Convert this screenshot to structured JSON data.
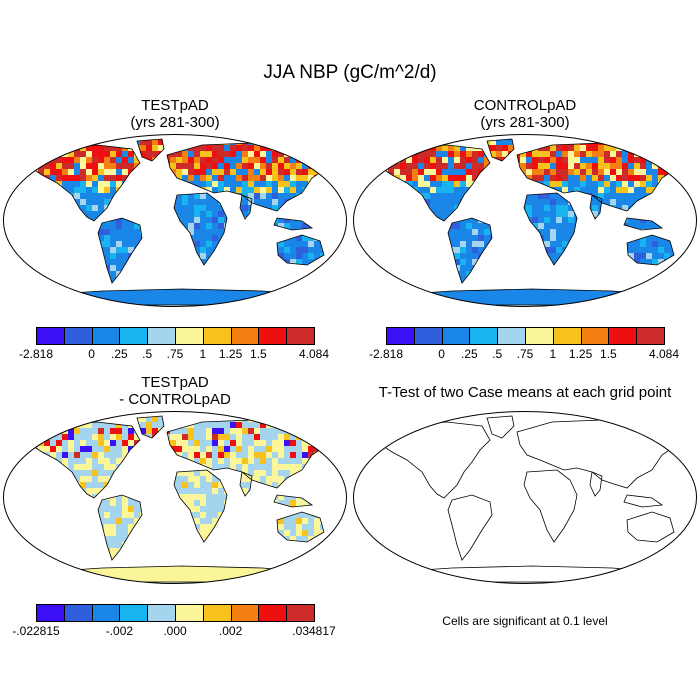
{
  "title": "JJA NBP (gC/m^2/d)",
  "panels": [
    {
      "id": "test",
      "title_line1": "TESTpAD",
      "title_line2": "(yrs 281-300)"
    },
    {
      "id": "control",
      "title_line1": "CONTROLpAD",
      "title_line2": "(yrs 281-300)"
    },
    {
      "id": "diff",
      "title_line1": "TESTpAD",
      "title_line2": "- CONTROLpAD"
    },
    {
      "id": "ttest",
      "title_line1": "T-Test of two Case means at each grid point",
      "title_line2": ""
    }
  ],
  "colorbars": {
    "main": {
      "colors": [
        "#3b10f5",
        "#2f5fdc",
        "#1a86e8",
        "#18b4ef",
        "#a5d4ee",
        "#fbf69a",
        "#f8c21c",
        "#f48012",
        "#ee1010",
        "#cd2a2a"
      ],
      "labels": [
        "-2.818",
        "0",
        ".25",
        ".5",
        ".75",
        "1",
        "1.25",
        "1.5",
        "4.084"
      ]
    },
    "diff": {
      "colors": [
        "#3b10f5",
        "#2f5fdc",
        "#1a86e8",
        "#18b4ef",
        "#a5d4ee",
        "#fbf69a",
        "#f8c21c",
        "#f48012",
        "#ee1010",
        "#cd2a2a"
      ],
      "labels": [
        "-.022815",
        "-.002",
        ".000",
        ".002",
        ".034817"
      ]
    }
  },
  "significance_note": "Cells are significant at 0.1 level",
  "colors": {
    "ocean": "#ffffff",
    "outline": "#000000"
  }
}
